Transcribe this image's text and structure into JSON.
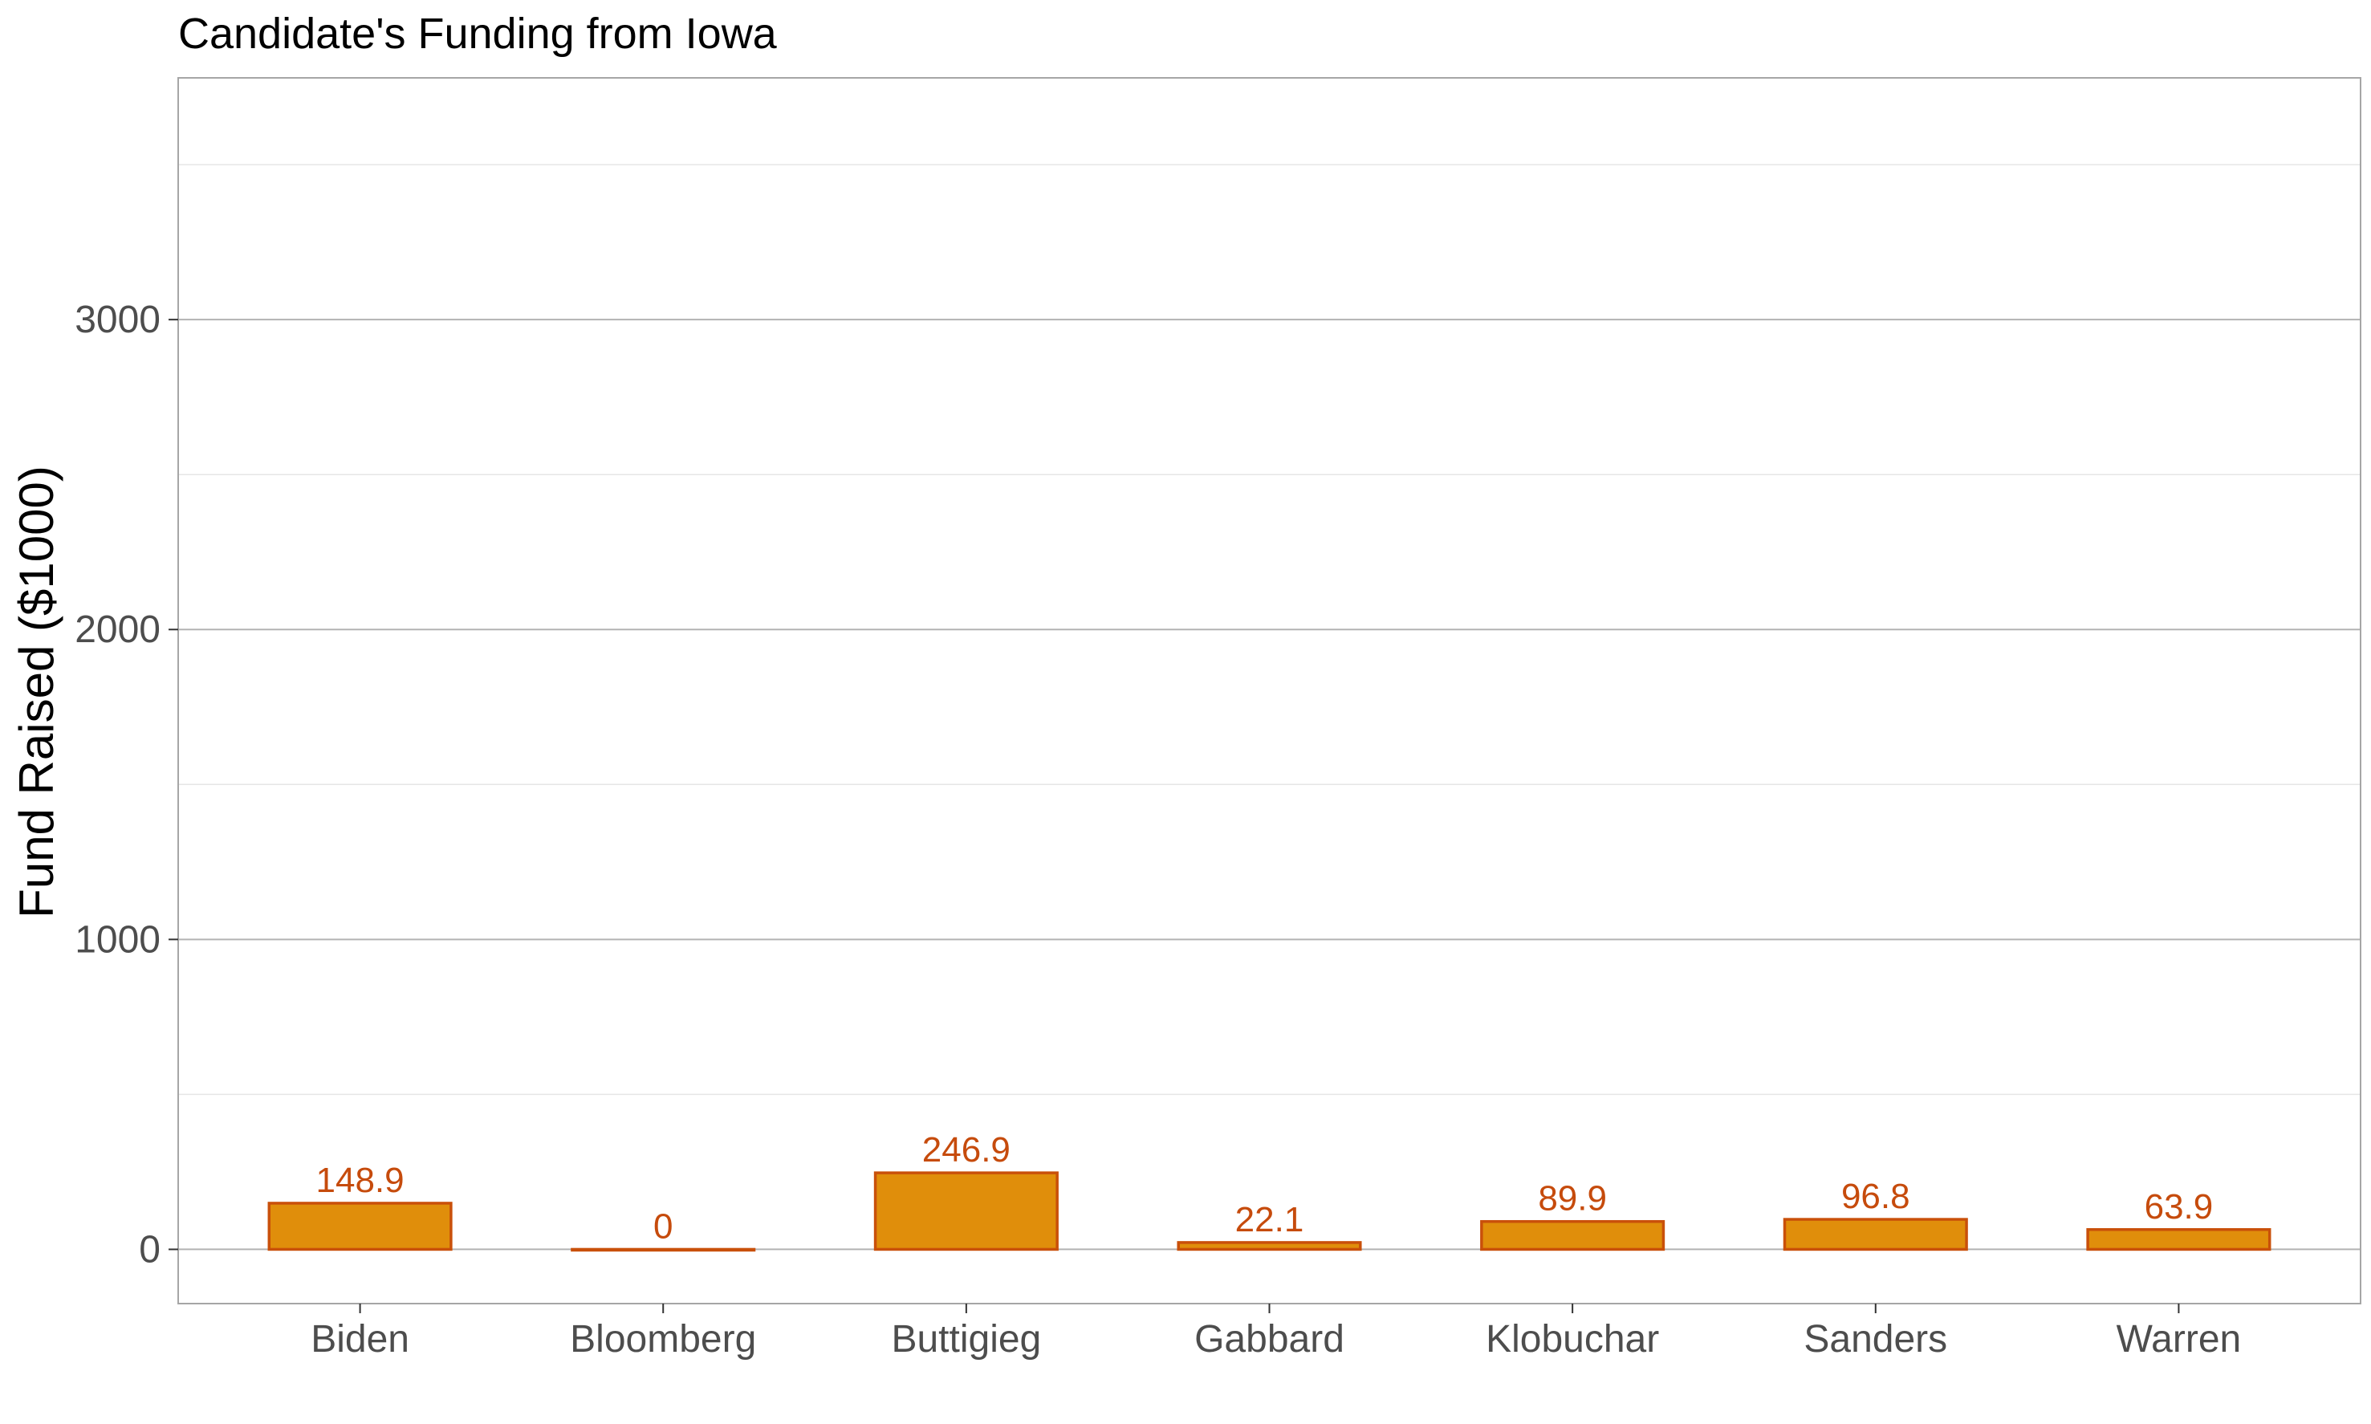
{
  "chart_data": {
    "type": "bar",
    "title": "Candidate's Funding from Iowa",
    "xlabel": "",
    "ylabel": "Fund Raised ($1000)",
    "categories": [
      "Biden",
      "Bloomberg",
      "Buttigieg",
      "Gabbard",
      "Klobuchar",
      "Sanders",
      "Warren"
    ],
    "values": [
      148.9,
      0,
      246.9,
      22.1,
      89.9,
      96.8,
      63.9
    ],
    "data_labels": [
      "148.9",
      "0",
      "246.9",
      "22.1",
      "89.9",
      "96.8",
      "63.9"
    ],
    "ylim": [
      -175,
      3780
    ],
    "y_ticks": [
      0,
      1000,
      2000,
      3000
    ],
    "y_tick_labels": [
      "0",
      "1000",
      "2000",
      "3000"
    ],
    "grid": true,
    "legend": "none",
    "colors": {
      "bar_fill": "#e08e0b",
      "bar_stroke": "#c9500a",
      "label": "#c64b0c",
      "gridline": "#b3b3b3",
      "panel_border": "#a6a6a6",
      "tick": "#333333",
      "tick_text": "#4d4d4d"
    }
  }
}
